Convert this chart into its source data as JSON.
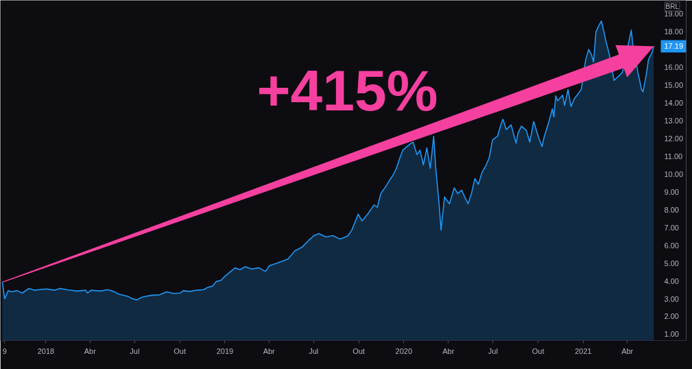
{
  "chart_data": {
    "type": "area",
    "ylabel": "BRL",
    "annotations": [
      "+415%",
      {
        "text": "17.19",
        "y": 17.19
      }
    ],
    "x": [
      "2017-10-04",
      "2017-10-09",
      "2017-10-16",
      "2017-10-23",
      "2017-11-03",
      "2017-11-14",
      "2017-11-27",
      "2017-12-08",
      "2018-01-02",
      "2018-01-19",
      "2018-01-30",
      "2018-02-16",
      "2018-03-06",
      "2018-03-23",
      "2018-03-27",
      "2018-04-03",
      "2018-04-23",
      "2018-05-07",
      "2018-05-21",
      "2018-05-29",
      "2018-06-18",
      "2018-06-26",
      "2018-07-06",
      "2018-07-16",
      "2018-08-03",
      "2018-08-21",
      "2018-09-04",
      "2018-09-18",
      "2018-10-02",
      "2018-10-08",
      "2018-10-22",
      "2018-11-05",
      "2018-11-19",
      "2018-11-27",
      "2018-12-07",
      "2018-12-14",
      "2018-12-24",
      "2019-01-02",
      "2019-01-08",
      "2019-01-22",
      "2019-02-01",
      "2019-02-11",
      "2019-02-25",
      "2019-03-11",
      "2019-03-25",
      "2019-04-02",
      "2019-04-16",
      "2019-04-29",
      "2019-05-10",
      "2019-05-24",
      "2019-06-07",
      "2019-06-21",
      "2019-07-02",
      "2019-07-12",
      "2019-07-26",
      "2019-08-09",
      "2019-08-23",
      "2019-08-30",
      "2019-09-09",
      "2019-09-17",
      "2019-09-30",
      "2019-10-08",
      "2019-10-21",
      "2019-11-01",
      "2019-11-08",
      "2019-11-15",
      "2019-11-25",
      "2019-12-02",
      "2019-12-10",
      "2019-12-17",
      "2019-12-23",
      "2019-12-30",
      "2020-01-13",
      "2020-01-20",
      "2020-01-28",
      "2020-02-03",
      "2020-02-10",
      "2020-02-17",
      "2020-02-24",
      "2020-03-02",
      "2020-03-06",
      "2020-03-13",
      "2020-03-17",
      "2020-03-24",
      "2020-04-03",
      "2020-04-13",
      "2020-04-20",
      "2020-04-28",
      "2020-05-11",
      "2020-05-18",
      "2020-05-25",
      "2020-06-01",
      "2020-06-09",
      "2020-06-16",
      "2020-06-23",
      "2020-06-30",
      "2020-07-10",
      "2020-07-17",
      "2020-07-21",
      "2020-07-28",
      "2020-08-07",
      "2020-08-17",
      "2020-08-21",
      "2020-08-28",
      "2020-09-07",
      "2020-09-14",
      "2020-09-22",
      "2020-10-02",
      "2020-10-09",
      "2020-10-13",
      "2020-10-23",
      "2020-10-30",
      "2020-11-02",
      "2020-11-06",
      "2020-11-10",
      "2020-11-20",
      "2020-11-24",
      "2020-12-01",
      "2020-12-07",
      "2020-12-14",
      "2020-12-21",
      "2020-12-28",
      "2021-01-04",
      "2021-01-06",
      "2021-01-12",
      "2021-01-18",
      "2021-01-22",
      "2021-01-27",
      "2021-02-01",
      "2021-02-07",
      "2021-02-12",
      "2021-02-16",
      "2021-02-23",
      "2021-03-02",
      "2021-03-05",
      "2021-03-14",
      "2021-03-22",
      "2021-03-29",
      "2021-04-05",
      "2021-04-09",
      "2021-04-12",
      "2021-04-23",
      "2021-04-30",
      "2021-05-03",
      "2021-05-10",
      "2021-05-14",
      "2021-05-21",
      "2021-05-25"
    ],
    "series": [
      {
        "color": "#2196f3",
        "values": [
          3.93,
          3.0,
          3.45,
          3.39,
          3.46,
          3.32,
          3.58,
          3.48,
          3.55,
          3.48,
          3.58,
          3.49,
          3.43,
          3.48,
          3.32,
          3.48,
          3.43,
          3.51,
          3.39,
          3.26,
          3.13,
          3.0,
          2.94,
          3.09,
          3.19,
          3.22,
          3.39,
          3.3,
          3.32,
          3.45,
          3.41,
          3.48,
          3.51,
          3.64,
          3.71,
          3.96,
          4.03,
          4.29,
          4.42,
          4.74,
          4.63,
          4.8,
          4.67,
          4.74,
          4.54,
          4.86,
          4.99,
          5.12,
          5.24,
          5.7,
          5.89,
          6.28,
          6.55,
          6.66,
          6.47,
          6.55,
          6.36,
          6.41,
          6.54,
          6.86,
          7.75,
          7.37,
          7.82,
          8.27,
          8.14,
          8.91,
          9.3,
          9.62,
          9.94,
          10.33,
          10.84,
          11.35,
          11.68,
          11.8,
          11.1,
          11.35,
          10.52,
          11.48,
          10.33,
          12.13,
          10.39,
          8.33,
          6.86,
          8.72,
          8.33,
          9.23,
          8.91,
          9.1,
          8.33,
          8.91,
          9.75,
          9.43,
          10.13,
          10.45,
          10.9,
          11.93,
          12.13,
          12.77,
          13.09,
          12.51,
          12.77,
          11.74,
          12.32,
          12.7,
          12.45,
          11.8,
          12.96,
          12.06,
          11.55,
          12.06,
          12.96,
          13.67,
          13.22,
          14.4,
          14.12,
          14.44,
          13.86,
          14.76,
          13.8,
          14.25,
          14.5,
          14.76,
          null,
          16.43,
          17.01,
          16.7,
          16.3,
          18.0,
          18.3,
          18.61,
          18.04,
          17.5,
          16.76,
          null,
          15.27,
          null,
          15.72,
          null,
          null,
          18.1,
          17.33,
          15.66,
          14.76,
          14.63,
          15.66,
          16.43,
          16.81,
          17.19
        ]
      }
    ],
    "xlim": [
      "2017-09-30",
      "2021-07-30"
    ],
    "ylim": [
      0.65,
      19.77
    ],
    "xticks": [
      {
        "value": "2017-10-09",
        "label": "9"
      },
      {
        "value": "2018-01-01",
        "label": "2018"
      },
      {
        "value": "2018-04-01",
        "label": "Abr"
      },
      {
        "value": "2018-07-01",
        "label": "Jul"
      },
      {
        "value": "2018-10-01",
        "label": "Out"
      },
      {
        "value": "2019-01-01",
        "label": "2019"
      },
      {
        "value": "2019-04-01",
        "label": "Abr"
      },
      {
        "value": "2019-07-01",
        "label": "Jul"
      },
      {
        "value": "2019-10-01",
        "label": "Out"
      },
      {
        "value": "2020-01-01",
        "label": "2020"
      },
      {
        "value": "2020-04-01",
        "label": "Abr"
      },
      {
        "value": "2020-07-01",
        "label": "Jul"
      },
      {
        "value": "2020-10-01",
        "label": "Out"
      },
      {
        "value": "2021-01-01",
        "label": "2021"
      },
      {
        "value": "2021-04-01",
        "label": "Abr"
      }
    ],
    "yticks": [
      {
        "value": 1,
        "label": "1.00"
      },
      {
        "value": 2,
        "label": "2.00"
      },
      {
        "value": 3,
        "label": "3.00"
      },
      {
        "value": 4,
        "label": "4.00"
      },
      {
        "value": 5,
        "label": "5.00"
      },
      {
        "value": 6,
        "label": "6.00"
      },
      {
        "value": 7,
        "label": "7.00"
      },
      {
        "value": 8,
        "label": "8.00"
      },
      {
        "value": 9,
        "label": "9.00"
      },
      {
        "value": 10,
        "label": "10.00"
      },
      {
        "value": 11,
        "label": "11.00"
      },
      {
        "value": 12,
        "label": "12.00"
      },
      {
        "value": 13,
        "label": "13.00"
      },
      {
        "value": 14,
        "label": "14.00"
      },
      {
        "value": 15,
        "label": "15.00"
      },
      {
        "value": 16,
        "label": "16.00"
      },
      {
        "value": 18,
        "label": "18.00"
      },
      {
        "value": 19,
        "label": "19.00"
      }
    ],
    "grid": false
  }
}
